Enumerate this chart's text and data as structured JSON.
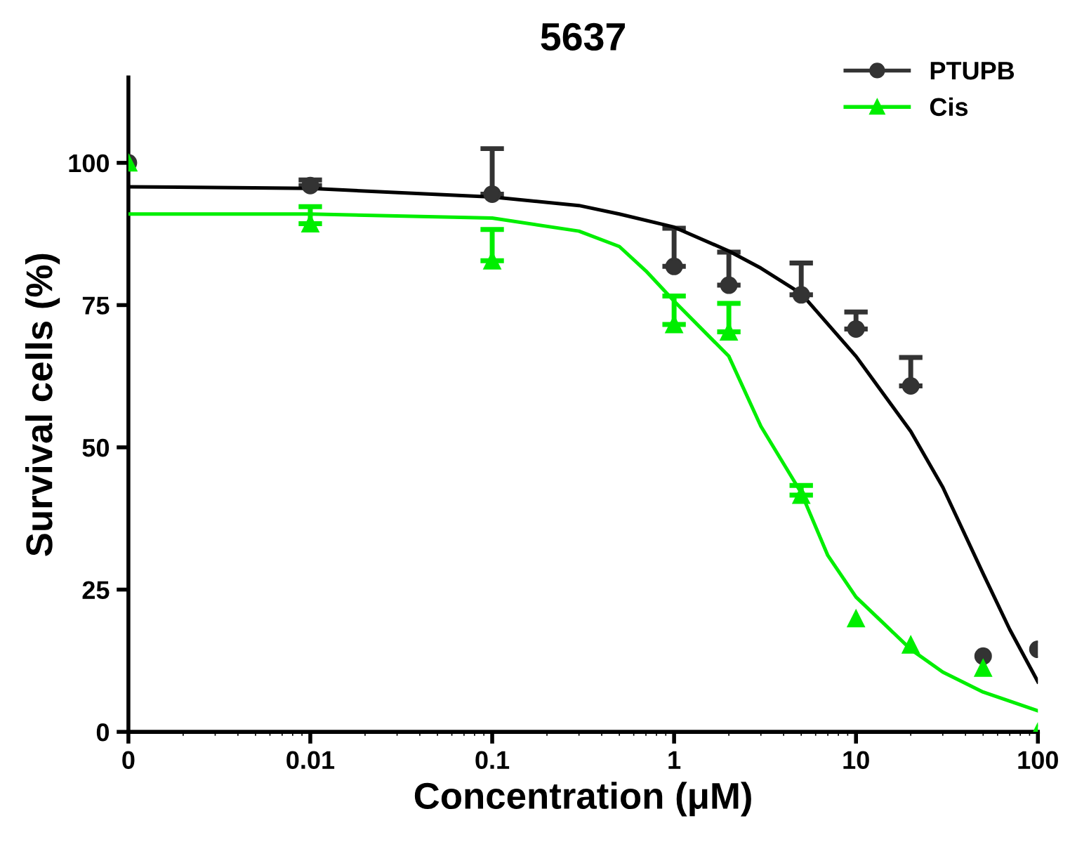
{
  "chart_data": {
    "type": "scatter",
    "title": "5637",
    "xlabel": "Concentration (μM)",
    "ylabel": "Survival cells (%)",
    "log": "x",
    "xlim": [
      0.001,
      100
    ],
    "xticks": [
      {
        "value": 0.001,
        "label": "0"
      },
      0.01,
      0.1,
      1,
      10,
      100
    ],
    "ylim": [
      0,
      115
    ],
    "yticks": [
      0,
      25,
      50,
      75,
      100
    ],
    "grid": false,
    "legend": "top right",
    "series": [
      {
        "name": "PTUPB",
        "marker": "circle",
        "color": "#333333",
        "x": [
          0.001,
          0.01,
          0.1,
          1,
          2,
          5,
          10,
          20,
          50,
          100
        ],
        "values": [
          100,
          96,
          94.5,
          81.8,
          78.5,
          76.8,
          70.8,
          60.8,
          13.3,
          14.5
        ],
        "errors": [
          null,
          [
            96,
            97
          ],
          [
            94.5,
            102.5
          ],
          [
            81.8,
            88.5
          ],
          [
            78.5,
            84.3
          ],
          [
            76.8,
            82.4
          ],
          [
            70.8,
            73.8
          ],
          [
            60.8,
            65.8
          ],
          null,
          null
        ]
      },
      {
        "name": "Cis",
        "marker": "triangle",
        "color": "#00ee00",
        "x": [
          0.001,
          0.01,
          0.1,
          1,
          2,
          5,
          10,
          20,
          50,
          100
        ],
        "values": [
          100,
          89.3,
          82.8,
          71.6,
          70.3,
          41.6,
          19.9,
          15.3,
          11.2,
          0
        ],
        "errors": [
          null,
          [
            89.3,
            92.3
          ],
          [
            82.8,
            88.3
          ],
          [
            71.6,
            76.6
          ],
          [
            70.3,
            75.3
          ],
          [
            41.6,
            43.3
          ],
          null,
          null,
          null,
          null
        ]
      },
      {
        "type": "line",
        "color": "#000000",
        "x": [
          0.001,
          0.01,
          0.1,
          0.3,
          0.5,
          1,
          2,
          3,
          5,
          10,
          20,
          30,
          50,
          70,
          100
        ],
        "values": [
          95.8,
          95.5,
          94,
          92.5,
          91,
          88.7,
          84.5,
          81.5,
          77,
          66,
          52.8,
          43,
          27.8,
          18,
          8.8
        ]
      },
      {
        "type": "line",
        "color": "#00ee00",
        "x": [
          0.001,
          0.01,
          0.1,
          0.3,
          0.5,
          0.7,
          1,
          2,
          3,
          5,
          7,
          10,
          20,
          30,
          50,
          100
        ],
        "values": [
          91,
          91,
          90.3,
          88,
          85.3,
          81,
          75.7,
          66,
          53.7,
          42,
          31,
          23.7,
          14.5,
          10.5,
          7,
          3.7
        ]
      }
    ]
  }
}
